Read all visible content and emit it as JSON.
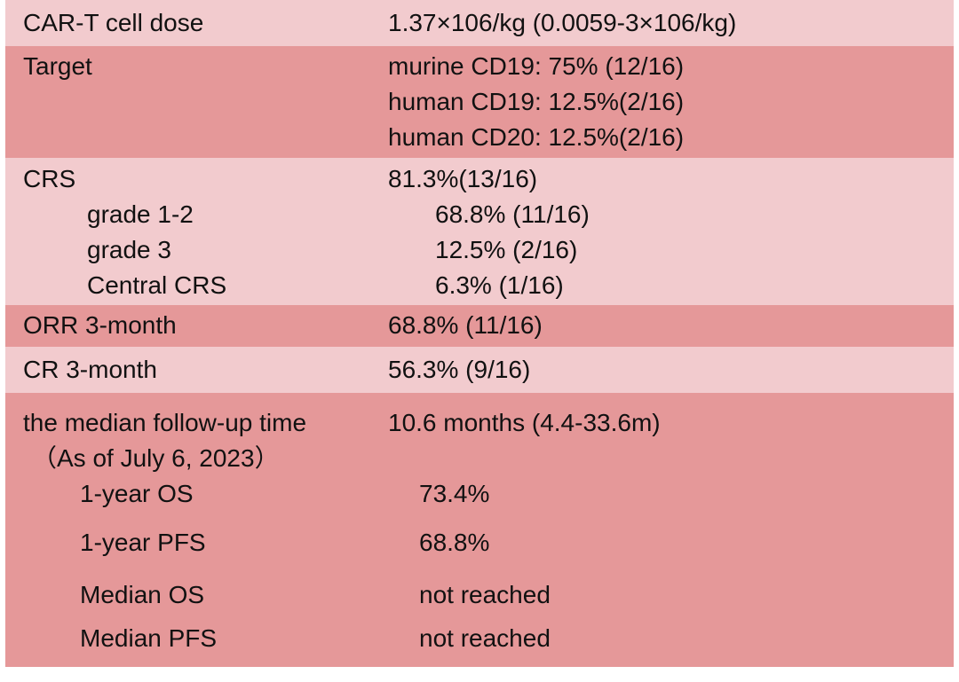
{
  "colors": {
    "background": "#ffffff",
    "row_light": "#f2cbce",
    "row_dark": "#e59899",
    "text": "#111111"
  },
  "table": {
    "name": "car-t-trial-summary-table",
    "rows": [
      {
        "key": "cart-dose",
        "shade": "light",
        "lines": [
          {
            "type": "main",
            "label": "CAR-T cell dose",
            "value": "1.37×106/kg (0.0059-3×106/kg)"
          }
        ]
      },
      {
        "key": "target",
        "shade": "dark",
        "lines": [
          {
            "type": "main",
            "label": "Target",
            "value": "murine CD19: 75% (12/16)"
          },
          {
            "type": "main",
            "label": "",
            "value": "human CD19: 12.5%(2/16)"
          },
          {
            "type": "main",
            "label": "",
            "value": "human CD20: 12.5%(2/16)"
          }
        ]
      },
      {
        "key": "crs",
        "shade": "light",
        "lines": [
          {
            "type": "main",
            "label": "CRS",
            "value": "81.3%(13/16)"
          },
          {
            "type": "sub",
            "label": "grade 1-2",
            "value": "68.8% (11/16)"
          },
          {
            "type": "sub",
            "label": "grade 3",
            "value": "12.5% (2/16)"
          },
          {
            "type": "sub",
            "label": "Central CRS",
            "value": "6.3% (1/16)"
          }
        ]
      },
      {
        "key": "orr",
        "shade": "dark",
        "lines": [
          {
            "type": "main",
            "label": "ORR 3-month",
            "value": "68.8% (11/16)"
          }
        ]
      },
      {
        "key": "cr",
        "shade": "light",
        "lines": [
          {
            "type": "main",
            "label": "CR 3-month",
            "value": "56.3% (9/16)"
          }
        ]
      },
      {
        "key": "followup",
        "shade": "dark",
        "lines": [
          {
            "type": "main",
            "label": "the median follow-up time",
            "value": "10.6 months (4.4-33.6m)"
          },
          {
            "type": "note",
            "label": "（As of July 6, 2023）",
            "value": ""
          },
          {
            "type": "sub",
            "label": "1-year OS",
            "value": "73.4%"
          },
          {
            "type": "sub",
            "label": "1-year PFS",
            "value": "68.8%"
          },
          {
            "type": "sub",
            "label": "Median OS",
            "value": "not reached"
          },
          {
            "type": "sub",
            "label": "Median PFS",
            "value": "not reached"
          }
        ]
      }
    ]
  }
}
